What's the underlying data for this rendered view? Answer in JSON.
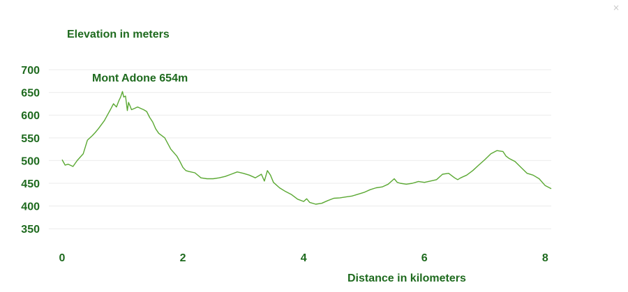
{
  "chart_data": {
    "type": "line",
    "ylabel": "Elevation in meters",
    "xlabel": "Distance in kilometers",
    "annotation": "Mont Adone 654m",
    "xlim": [
      0,
      8.1
    ],
    "ylim": [
      335,
      720
    ],
    "grid": true,
    "line_color": "#5aa832",
    "label_color": "#1e6a1e",
    "y_ticks": [
      350,
      400,
      450,
      500,
      550,
      600,
      650,
      700
    ],
    "x_ticks": [
      0,
      2,
      4,
      6,
      8
    ],
    "series": [
      {
        "x": [
          0,
          0.05,
          0.1,
          0.18,
          0.25,
          0.35,
          0.42,
          0.5,
          0.55,
          0.6,
          0.7,
          0.75,
          0.8,
          0.85,
          0.9,
          0.94,
          0.97,
          1.0,
          1.02,
          1.05,
          1.08,
          1.1,
          1.12,
          1.15,
          1.2,
          1.25,
          1.3,
          1.35,
          1.4,
          1.45,
          1.5,
          1.55,
          1.6,
          1.7,
          1.8,
          1.9,
          1.95,
          2.0,
          2.05,
          2.1,
          2.2,
          2.3,
          2.4,
          2.5,
          2.6,
          2.7,
          2.8,
          2.9,
          3.0,
          3.1,
          3.2,
          3.3,
          3.35,
          3.4,
          3.45,
          3.5,
          3.6,
          3.7,
          3.8,
          3.9,
          4.0,
          4.05,
          4.1,
          4.2,
          4.3,
          4.4,
          4.5,
          4.6,
          4.7,
          4.8,
          4.9,
          5.0,
          5.1,
          5.2,
          5.3,
          5.4,
          5.5,
          5.55,
          5.6,
          5.7,
          5.8,
          5.9,
          6.0,
          6.1,
          6.2,
          6.3,
          6.4,
          6.5,
          6.55,
          6.6,
          6.7,
          6.8,
          6.9,
          7.0,
          7.1,
          7.2,
          7.3,
          7.35,
          7.4,
          7.5,
          7.6,
          7.7,
          7.8,
          7.9,
          8.0,
          8.1
        ],
        "values": [
          502,
          490,
          492,
          487,
          500,
          515,
          545,
          555,
          562,
          570,
          588,
          600,
          612,
          625,
          618,
          632,
          640,
          652,
          640,
          642,
          610,
          628,
          622,
          612,
          615,
          618,
          615,
          612,
          608,
          595,
          585,
          570,
          560,
          550,
          525,
          510,
          498,
          485,
          478,
          476,
          473,
          462,
          460,
          460,
          462,
          465,
          470,
          475,
          472,
          468,
          462,
          470,
          455,
          478,
          468,
          452,
          440,
          432,
          425,
          415,
          410,
          416,
          408,
          404,
          406,
          412,
          417,
          418,
          420,
          422,
          426,
          430,
          436,
          440,
          442,
          448,
          460,
          452,
          450,
          448,
          450,
          454,
          452,
          455,
          458,
          470,
          472,
          462,
          458,
          462,
          468,
          478,
          490,
          502,
          515,
          522,
          520,
          510,
          505,
          498,
          485,
          472,
          468,
          460,
          445,
          438
        ]
      }
    ]
  },
  "window": {
    "close_glyph": "×"
  }
}
